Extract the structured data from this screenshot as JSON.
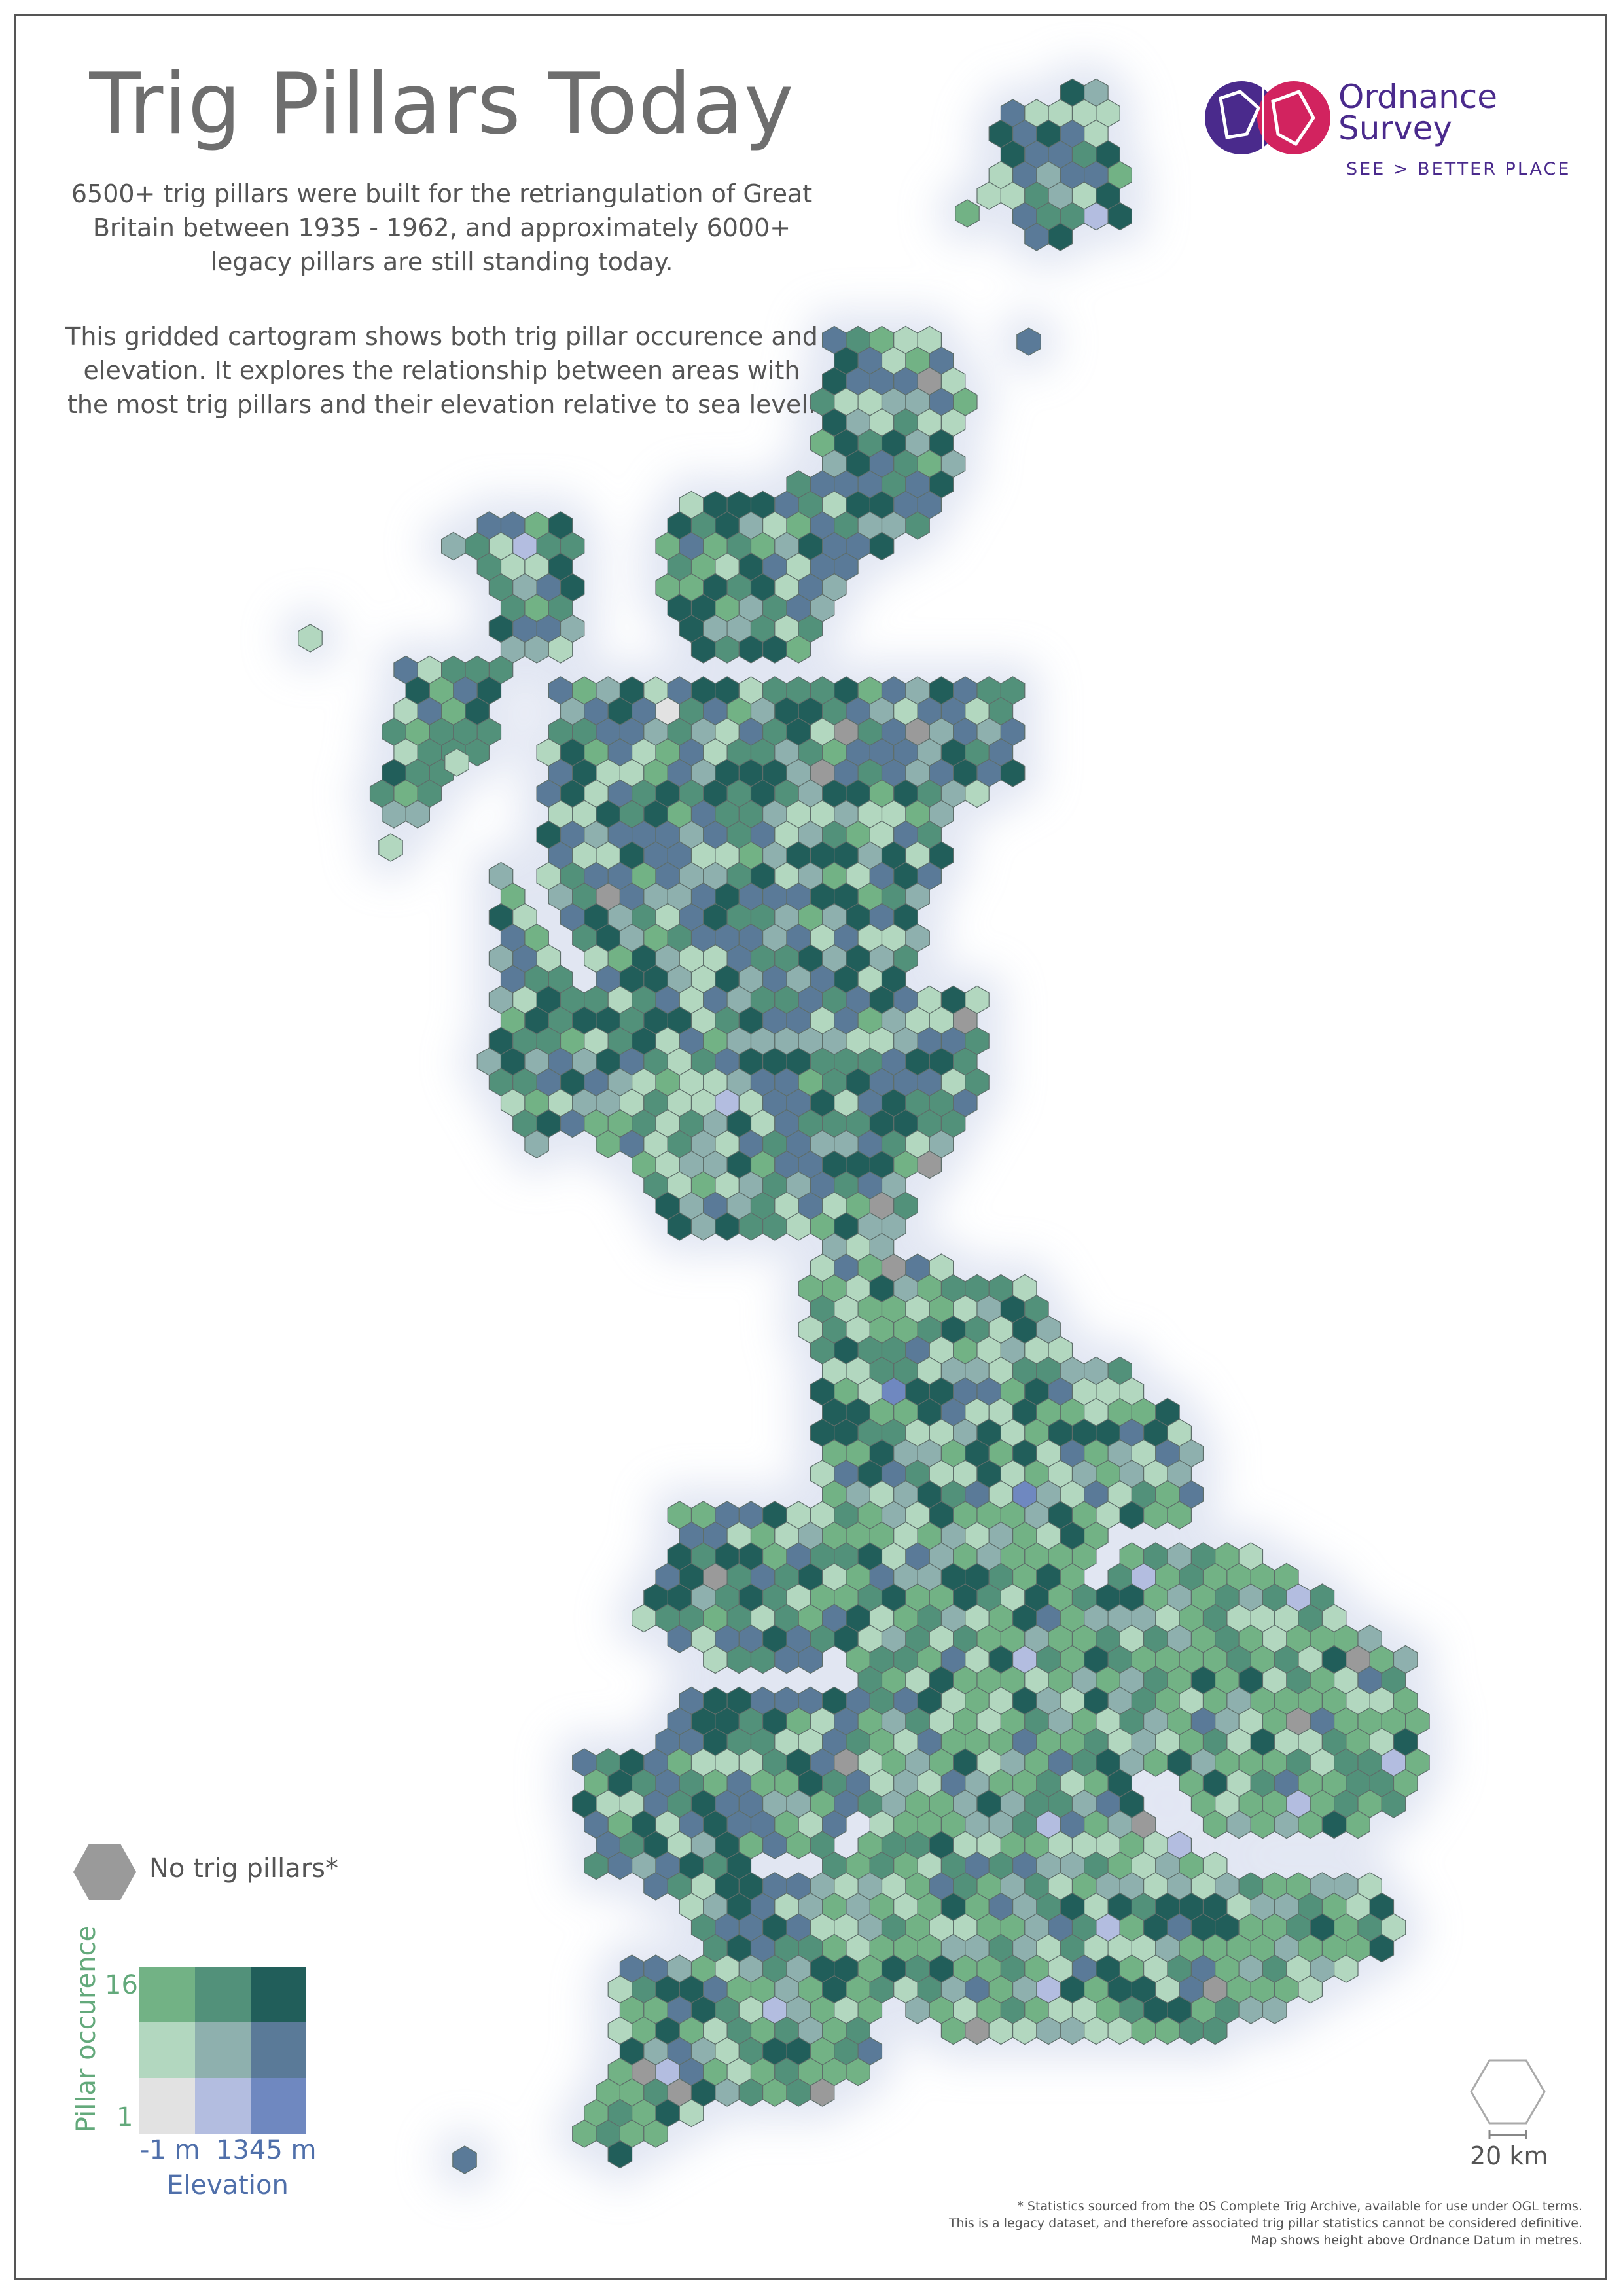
{
  "title": "Trig Pillars Today",
  "intro_paragraph_1": "6500+ trig pillars were built for the retriangulation of Great Britain between 1935 - 1962, and approximately 6000+ legacy pillars are still standing today.",
  "intro_paragraph_2": "This gridded cartogram shows both trig pillar occurence and elevation. It explores the relationship between areas with the most trig pillars and their elevation relative to sea level.",
  "logo": {
    "name_line_1": "Ordnance",
    "name_line_2": "Survey",
    "tagline": "SEE > BETTER PLACE",
    "brand_purple": "#4a2a8c",
    "brand_magenta": "#d2235f"
  },
  "legend": {
    "no_pillars_label": "No trig pillars*",
    "no_pillars_color": "#9a9a9a",
    "y_axis_label": "Pillar occurence",
    "y_max": "16",
    "y_min": "1",
    "x_axis_label": "Elevation",
    "x_min": "-1 m",
    "x_max": "1345 m",
    "bivariate_colors": [
      [
        "#72b285",
        "#52917a",
        "#215e5a"
      ],
      [
        "#b2d7bf",
        "#8eb0ae",
        "#5a7a98"
      ],
      [
        "#e2e2e2",
        "#b3bde0",
        "#6f88c0"
      ]
    ]
  },
  "scale_bar": {
    "label": "20 km"
  },
  "footnote": {
    "line_1": "* Statistics sourced from the OS Complete Trig Archive, available for use under OGL terms.",
    "line_2": "This is a legacy dataset, and therefore associated trig pillar statistics cannot be considered definitive.",
    "line_3": "Map shows height above Ordnance Datum in metres."
  },
  "colors": {
    "border": "#555555",
    "hex_stroke": "#5e6e6a",
    "map_glow": "#c9d2e8",
    "title_gray": "#6e6e6e"
  }
}
